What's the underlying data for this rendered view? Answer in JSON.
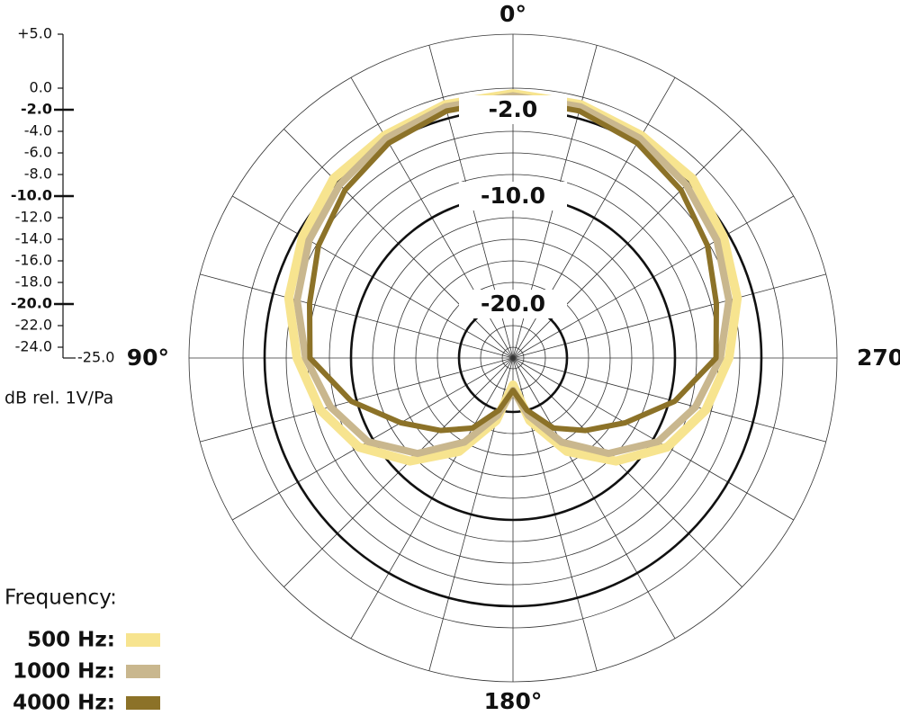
{
  "chart_data": {
    "type": "polar",
    "rlim": [
      -25,
      5
    ],
    "rticks": [
      {
        "value": 5,
        "label": "+5.0"
      },
      {
        "value": 0,
        "label": "0.0"
      },
      {
        "value": -2,
        "label": "-2.0"
      },
      {
        "value": -4,
        "label": "-4.0"
      },
      {
        "value": -6,
        "label": "-6.0"
      },
      {
        "value": -8,
        "label": "-8.0"
      },
      {
        "value": -10,
        "label": "-10.0"
      },
      {
        "value": -12,
        "label": "-12.0"
      },
      {
        "value": -14,
        "label": "-14.0"
      },
      {
        "value": -16,
        "label": "-16.0"
      },
      {
        "value": -18,
        "label": "-18.0"
      },
      {
        "value": -20,
        "label": "-20.0"
      },
      {
        "value": -22,
        "label": "-22.0"
      },
      {
        "value": -24,
        "label": "-24.0"
      },
      {
        "value": -25,
        "label": "-25.0"
      }
    ],
    "ring_labels": [
      {
        "value": -2,
        "label": "-2.0"
      },
      {
        "value": -10,
        "label": "-10.0"
      },
      {
        "value": -20,
        "label": "-20.0"
      }
    ],
    "r_axis_label": "dB rel. 1V/Pa",
    "thetaticks": [
      {
        "value": 0,
        "label": "0°"
      },
      {
        "value": 90,
        "label": "90°"
      },
      {
        "value": 180,
        "label": "180°"
      },
      {
        "value": 270,
        "label": "270°"
      }
    ],
    "thetagrid": [
      0,
      15,
      30,
      45,
      60,
      75,
      90,
      105,
      120,
      135,
      150,
      165,
      180,
      195,
      210,
      225,
      240,
      255,
      270,
      285,
      300,
      315,
      330,
      345
    ],
    "theta": [
      0,
      15,
      30,
      45,
      60,
      75,
      90,
      105,
      120,
      135,
      150,
      165,
      180,
      195,
      210,
      225,
      240,
      255,
      270,
      285,
      300,
      315,
      330,
      345
    ],
    "legend_title": "Frequency:",
    "series": [
      {
        "name": "500 Hz:",
        "color": "#f7e48f",
        "values": [
          -0.5,
          -0.7,
          -1.2,
          -1.5,
          -2.5,
          -3.5,
          -5,
          -6.5,
          -8.5,
          -11.5,
          -15,
          -19,
          -22.5,
          -19,
          -15,
          -11.5,
          -8.5,
          -6.5,
          -5,
          -3.5,
          -2.5,
          -1.5,
          -1.2,
          -0.7
        ]
      },
      {
        "name": "1000 Hz:",
        "color": "#c9b78e",
        "values": [
          -0.7,
          -0.9,
          -1.5,
          -2.3,
          -3.2,
          -4.3,
          -5.8,
          -7.5,
          -9.5,
          -12.5,
          -16,
          -19.5,
          -22,
          -19.5,
          -16,
          -12.5,
          -9.5,
          -7.5,
          -5.8,
          -4.3,
          -3.2,
          -2.3,
          -1.5,
          -0.9
        ]
      },
      {
        "name": "4000 Hz:",
        "color": "#8c7228",
        "values": [
          -1,
          -1.3,
          -2,
          -3,
          -4.2,
          -5.5,
          -6.2,
          -9.5,
          -13,
          -15.5,
          -17.5,
          -20,
          -22,
          -20,
          -17.5,
          -15.5,
          -13,
          -9.5,
          -6.2,
          -5.5,
          -4.2,
          -3,
          -2,
          -1.3
        ]
      }
    ]
  }
}
